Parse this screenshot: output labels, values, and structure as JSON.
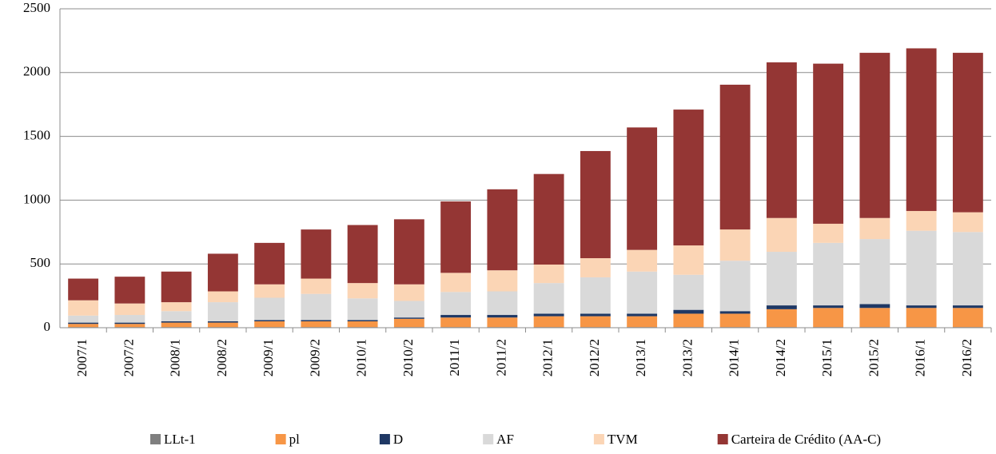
{
  "chart_data": {
    "type": "stacked_bar",
    "categories": [
      "2007/1",
      "2007/2",
      "2008/1",
      "2008/2",
      "2009/1",
      "2009/2",
      "2010/1",
      "2010/2",
      "2011/1",
      "2011/2",
      "2012/1",
      "2012/2",
      "2013/1",
      "2013/2",
      "2014/1",
      "2014/2",
      "2015/1",
      "2015/2",
      "2016/1",
      "2016/2"
    ],
    "series": [
      {
        "name": "LLt-1",
        "color": "#7f7f7f",
        "values": [
          5,
          5,
          5,
          5,
          5,
          5,
          5,
          5,
          5,
          5,
          5,
          5,
          5,
          5,
          5,
          5,
          5,
          5,
          5,
          5
        ]
      },
      {
        "name": "pl",
        "color": "#f79646",
        "values": [
          25,
          25,
          35,
          35,
          45,
          45,
          45,
          65,
          75,
          75,
          85,
          85,
          85,
          105,
          105,
          140,
          150,
          150,
          150,
          150
        ]
      },
      {
        "name": "D",
        "color": "#1f3864",
        "values": [
          10,
          10,
          10,
          10,
          10,
          10,
          10,
          10,
          20,
          20,
          20,
          20,
          20,
          30,
          20,
          30,
          20,
          30,
          20,
          20
        ]
      },
      {
        "name": "AF",
        "color": "#d9d9d9",
        "values": [
          55,
          60,
          80,
          150,
          175,
          205,
          170,
          130,
          180,
          185,
          240,
          285,
          330,
          275,
          395,
          420,
          490,
          510,
          585,
          575
        ]
      },
      {
        "name": "TVM",
        "color": "#fbd5b5",
        "values": [
          120,
          90,
          70,
          85,
          105,
          120,
          120,
          130,
          150,
          165,
          145,
          150,
          170,
          230,
          245,
          265,
          150,
          165,
          155,
          155
        ]
      },
      {
        "name": "Carteira de Crédito (AA-C)",
        "color": "#943634",
        "values": [
          170,
          210,
          240,
          295,
          325,
          385,
          455,
          510,
          560,
          635,
          710,
          840,
          960,
          1065,
          1135,
          1220,
          1255,
          1295,
          1275,
          1250
        ]
      }
    ],
    "ylim": [
      0,
      2500
    ],
    "yticks": [
      0,
      500,
      1000,
      1500,
      2000,
      2500
    ],
    "grid": true,
    "legend": "bottom"
  }
}
